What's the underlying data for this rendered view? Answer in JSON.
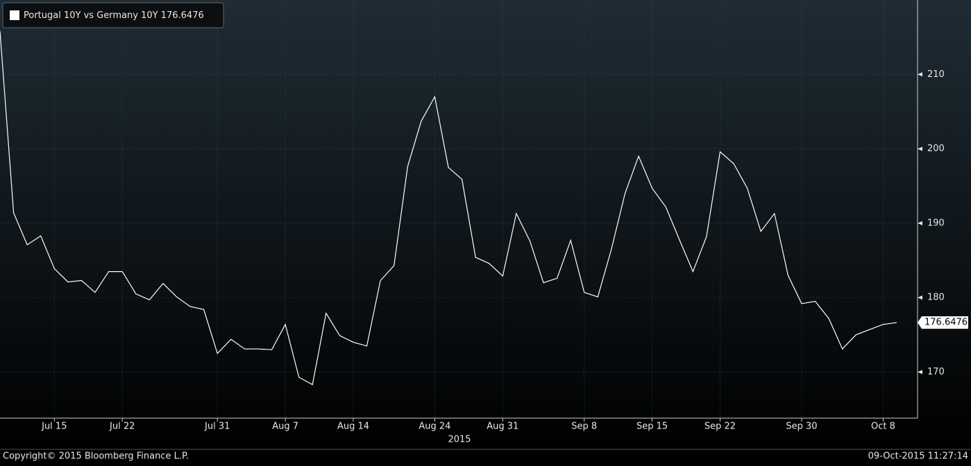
{
  "chart_data": {
    "type": "line",
    "subtitle": "2015",
    "categories": [
      null,
      null,
      null,
      null,
      "Jul 15",
      null,
      null,
      null,
      null,
      "Jul 22",
      null,
      null,
      null,
      null,
      null,
      null,
      "Jul 31",
      null,
      null,
      null,
      null,
      "Aug 7",
      null,
      null,
      null,
      null,
      "Aug 14",
      null,
      null,
      null,
      null,
      null,
      "Aug 24",
      null,
      null,
      null,
      null,
      "Aug 31",
      null,
      null,
      null,
      null,
      null,
      "Sep 8",
      null,
      null,
      null,
      null,
      "Sep 15",
      null,
      null,
      null,
      null,
      "Sep 22",
      null,
      null,
      null,
      null,
      null,
      "Sep 30",
      null,
      null,
      null,
      null,
      null,
      "Oct 8",
      null
    ],
    "series": [
      {
        "name": "Portugal 10Y vs Germany 10Y",
        "color": "#ffffff",
        "values": [
          215.8,
          191.4,
          187.1,
          188.3,
          183.9,
          182.1,
          182.3,
          180.7,
          183.5,
          183.5,
          180.5,
          179.7,
          181.9,
          180.1,
          178.8,
          178.4,
          172.5,
          174.4,
          173.1,
          173.1,
          173.0,
          176.4,
          169.3,
          168.3,
          177.9,
          174.9,
          174.0,
          173.5,
          182.3,
          184.3,
          197.6,
          203.7,
          207.0,
          197.5,
          195.9,
          185.4,
          184.6,
          182.9,
          191.3,
          187.6,
          182.0,
          182.6,
          187.7,
          180.7,
          180.1,
          186.5,
          194.0,
          199.0,
          194.7,
          192.2,
          187.8,
          183.5,
          188.2,
          199.6,
          198.0,
          194.7,
          188.9,
          191.3,
          183.0,
          179.2,
          179.5,
          177.2,
          173.1,
          175.0,
          175.7,
          176.4,
          176.6476
        ]
      }
    ],
    "ylim": [
      163.8,
      220
    ],
    "yticks": [
      170,
      180,
      190,
      200,
      210
    ],
    "y_axis_side": "right",
    "grid": true
  },
  "footer": {
    "copyright": "Copyright© 2015 Bloomberg Finance L.P.",
    "timestamp": "09-Oct-2015 11:27:14"
  }
}
